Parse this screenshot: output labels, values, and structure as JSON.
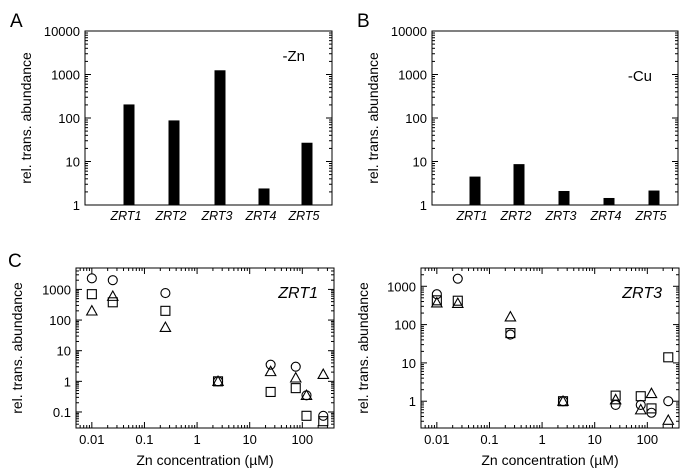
{
  "panels": [
    {
      "letter": "A"
    },
    {
      "letter": "B"
    },
    {
      "letter": "C"
    }
  ],
  "chart_data": [
    {
      "type": "bar",
      "scale": "log",
      "ylabel": "rel. trans. abundance",
      "ylim": [
        1,
        10000
      ],
      "yticks": [
        "1",
        "10",
        "100",
        "1000",
        "10000"
      ],
      "annotation": "-Zn",
      "categories": [
        "ZRT1",
        "ZRT2",
        "ZRT3",
        "ZRT4",
        "ZRT5"
      ],
      "values": [
        205,
        88,
        1250,
        2.4,
        27
      ],
      "bar_color": "#000000"
    },
    {
      "type": "bar",
      "scale": "log",
      "ylabel": "rel. trans. abundance",
      "ylim": [
        1,
        10000
      ],
      "yticks": [
        "1",
        "10",
        "100",
        "1000",
        "10000"
      ],
      "annotation": "-Cu",
      "categories": [
        "ZRT1",
        "ZRT2",
        "ZRT3",
        "ZRT4",
        "ZRT5"
      ],
      "values": [
        4.5,
        8.7,
        2.1,
        1.45,
        2.15
      ],
      "bar_color": "#000000"
    },
    {
      "type": "scatter",
      "scale": "log-log",
      "title": "ZRT1",
      "xlabel": "Zn concentration (µM)",
      "ylabel": "rel. trans. abundance",
      "xlim": [
        0.005,
        400
      ],
      "ylim": [
        0.03,
        5000
      ],
      "xticks": [
        "0.01",
        "0.1",
        "1",
        "10",
        "100"
      ],
      "yticks": [
        "0.1",
        "1",
        "10",
        "100",
        "1000"
      ],
      "series": [
        {
          "marker": "circle",
          "x": [
            0.01,
            0.025,
            0.25,
            2.5,
            25,
            75,
            120,
            250
          ],
          "y": [
            2300,
            2000,
            760,
            1.0,
            3.5,
            3.0,
            0.35,
            0.075
          ]
        },
        {
          "marker": "square",
          "x": [
            0.01,
            0.025,
            0.25,
            2.5,
            25,
            75,
            120,
            250
          ],
          "y": [
            700,
            380,
            200,
            1.0,
            0.45,
            0.6,
            0.075,
            0.05
          ]
        },
        {
          "marker": "triangle",
          "x": [
            0.01,
            0.025,
            0.25,
            2.5,
            25,
            75,
            120,
            250
          ],
          "y": [
            200,
            600,
            58,
            1.0,
            2.1,
            1.3,
            0.35,
            1.7
          ]
        }
      ]
    },
    {
      "type": "scatter",
      "scale": "log-log",
      "title": "ZRT3",
      "xlabel": "Zn concentration (µM)",
      "ylabel": "rel. trans. abundance",
      "xlim": [
        0.005,
        400
      ],
      "ylim": [
        0.2,
        3000
      ],
      "xticks": [
        "0.01",
        "0.1",
        "1",
        "10",
        "100"
      ],
      "yticks": [
        "1",
        "10",
        "100",
        "1000"
      ],
      "series": [
        {
          "marker": "circle",
          "x": [
            0.01,
            0.025,
            0.25,
            2.5,
            25,
            75,
            120,
            250
          ],
          "y": [
            620,
            1580,
            55,
            1.0,
            0.8,
            0.8,
            0.5,
            1.0
          ]
        },
        {
          "marker": "square",
          "x": [
            0.01,
            0.025,
            0.25,
            2.5,
            25,
            75,
            120,
            250
          ],
          "y": [
            430,
            420,
            60,
            1.0,
            1.4,
            1.35,
            0.65,
            14
          ]
        },
        {
          "marker": "triangle",
          "x": [
            0.01,
            0.025,
            0.25,
            2.5,
            25,
            75,
            120,
            250
          ],
          "y": [
            370,
            360,
            160,
            1.0,
            1.1,
            0.6,
            1.6,
            0.32
          ]
        }
      ]
    }
  ]
}
